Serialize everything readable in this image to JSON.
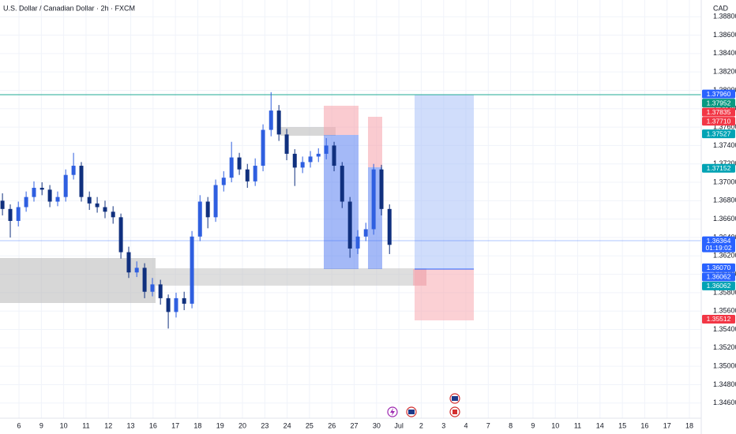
{
  "chart_data": {
    "type": "candlestick",
    "title": "U.S. Dollar / Canadian Dollar · 2h · FXCM",
    "currency": "CAD",
    "up_color": "#2f5fe0",
    "down_color": "#10307e",
    "grid": true,
    "xlim": [
      -0.85,
      30.53
    ],
    "ylim": [
      1.34435,
      1.38982
    ],
    "xticks": [
      {
        "value": 0,
        "label": "6"
      },
      {
        "value": 1,
        "label": "9"
      },
      {
        "value": 2,
        "label": "10"
      },
      {
        "value": 3,
        "label": "11"
      },
      {
        "value": 4,
        "label": "12"
      },
      {
        "value": 5,
        "label": "13"
      },
      {
        "value": 6,
        "label": "16"
      },
      {
        "value": 7,
        "label": "17"
      },
      {
        "value": 8,
        "label": "18"
      },
      {
        "value": 9,
        "label": "19"
      },
      {
        "value": 10,
        "label": "20"
      },
      {
        "value": 11,
        "label": "23"
      },
      {
        "value": 12,
        "label": "24"
      },
      {
        "value": 13,
        "label": "25"
      },
      {
        "value": 14,
        "label": "26"
      },
      {
        "value": 15,
        "label": "27"
      },
      {
        "value": 16,
        "label": "30"
      },
      {
        "value": 17,
        "label": "Jul"
      },
      {
        "value": 18,
        "label": "2"
      },
      {
        "value": 19,
        "label": "3"
      },
      {
        "value": 20,
        "label": "4"
      },
      {
        "value": 21,
        "label": "7"
      },
      {
        "value": 22,
        "label": "8"
      },
      {
        "value": 23,
        "label": "9"
      },
      {
        "value": 24,
        "label": "10"
      },
      {
        "value": 25,
        "label": "11"
      },
      {
        "value": 26,
        "label": "14"
      },
      {
        "value": 27,
        "label": "15"
      },
      {
        "value": 28,
        "label": "16"
      },
      {
        "value": 29,
        "label": "17"
      },
      {
        "value": 30,
        "label": "18"
      }
    ],
    "yticks": [
      {
        "value": 1.346,
        "label": "1.34600"
      },
      {
        "value": 1.348,
        "label": "1.34800"
      },
      {
        "value": 1.35,
        "label": "1.35000"
      },
      {
        "value": 1.352,
        "label": "1.35200"
      },
      {
        "value": 1.354,
        "label": "1.35400"
      },
      {
        "value": 1.356,
        "label": "1.35600"
      },
      {
        "value": 1.358,
        "label": "1.35800"
      },
      {
        "value": 1.36,
        "label": "1.36000"
      },
      {
        "value": 1.362,
        "label": "1.36200"
      },
      {
        "value": 1.364,
        "label": "1.36400"
      },
      {
        "value": 1.366,
        "label": "1.36600"
      },
      {
        "value": 1.368,
        "label": "1.36800"
      },
      {
        "value": 1.37,
        "label": "1.37000"
      },
      {
        "value": 1.372,
        "label": "1.37200"
      },
      {
        "value": 1.374,
        "label": "1.37400"
      },
      {
        "value": 1.376,
        "label": "1.37600"
      },
      {
        "value": 1.378,
        "label": "1.37800"
      },
      {
        "value": 1.38,
        "label": "1.38000"
      },
      {
        "value": 1.382,
        "label": "1.38200"
      },
      {
        "value": 1.384,
        "label": "1.38400"
      },
      {
        "value": 1.386,
        "label": "1.38600"
      },
      {
        "value": 1.388,
        "label": "1.38800"
      }
    ],
    "x": [
      -0.74,
      -0.39,
      -0.03,
      0.32,
      0.67,
      1.03,
      1.38,
      1.73,
      2.09,
      2.44,
      2.79,
      3.15,
      3.5,
      3.85,
      4.21,
      4.56,
      4.91,
      5.27,
      5.62,
      5.97,
      6.33,
      6.68,
      7.03,
      7.39,
      7.74,
      8.1,
      8.45,
      8.8,
      9.16,
      9.51,
      9.86,
      10.22,
      10.57,
      10.92,
      11.28,
      11.63,
      11.98,
      12.34,
      12.69,
      13.04,
      13.4,
      13.75,
      14.1,
      14.46,
      14.81,
      15.16,
      15.52,
      15.87,
      16.22,
      16.58
    ],
    "open": [
      1.368,
      1.3671,
      1.3658,
      1.3673,
      1.3684,
      1.3694,
      1.3692,
      1.3679,
      1.3684,
      1.3708,
      1.3718,
      1.3684,
      1.3677,
      1.3673,
      1.3668,
      1.3662,
      1.3624,
      1.3602,
      1.3607,
      1.3581,
      1.3589,
      1.3574,
      1.3559,
      1.3574,
      1.3568,
      1.3641,
      1.3679,
      1.3662,
      1.3697,
      1.3705,
      1.3727,
      1.3714,
      1.3701,
      1.3718,
      1.3757,
      1.3778,
      1.3752,
      1.3731,
      1.3716,
      1.3722,
      1.3728,
      1.3731,
      1.374,
      1.3718,
      1.3679,
      1.3628,
      1.3641,
      1.3649,
      1.3714,
      1.3671
    ],
    "high": [
      1.3688,
      1.3676,
      1.3679,
      1.369,
      1.3701,
      1.37,
      1.3697,
      1.369,
      1.3714,
      1.3732,
      1.3722,
      1.369,
      1.3684,
      1.368,
      1.3674,
      1.3666,
      1.363,
      1.3614,
      1.3612,
      1.3596,
      1.3594,
      1.3578,
      1.358,
      1.3581,
      1.3647,
      1.3686,
      1.3684,
      1.3703,
      1.3712,
      1.3744,
      1.3732,
      1.372,
      1.3726,
      1.3763,
      1.3798,
      1.3784,
      1.3758,
      1.3736,
      1.3728,
      1.3734,
      1.3737,
      1.3748,
      1.3744,
      1.3722,
      1.3684,
      1.3648,
      1.3656,
      1.372,
      1.3719,
      1.3676
    ],
    "low": [
      1.3664,
      1.364,
      1.3652,
      1.3668,
      1.3679,
      1.3686,
      1.3673,
      1.3674,
      1.3679,
      1.3703,
      1.3679,
      1.367,
      1.3667,
      1.3661,
      1.3655,
      1.3617,
      1.3596,
      1.3597,
      1.3574,
      1.3576,
      1.3567,
      1.3541,
      1.3553,
      1.3561,
      1.3563,
      1.3636,
      1.365,
      1.3657,
      1.369,
      1.37,
      1.3708,
      1.3694,
      1.3696,
      1.3712,
      1.375,
      1.3745,
      1.3724,
      1.3696,
      1.371,
      1.3716,
      1.3722,
      1.3725,
      1.3712,
      1.3672,
      1.3618,
      1.3622,
      1.3636,
      1.3643,
      1.3664,
      1.3622
    ],
    "close": [
      1.3671,
      1.3658,
      1.3673,
      1.3684,
      1.3694,
      1.3692,
      1.3679,
      1.3684,
      1.3708,
      1.3718,
      1.3684,
      1.3677,
      1.3673,
      1.3668,
      1.3662,
      1.3624,
      1.3602,
      1.3607,
      1.3581,
      1.3589,
      1.3574,
      1.3559,
      1.3574,
      1.3568,
      1.3641,
      1.3679,
      1.3662,
      1.3697,
      1.3705,
      1.3727,
      1.3714,
      1.3701,
      1.3718,
      1.3757,
      1.3778,
      1.3752,
      1.3731,
      1.3716,
      1.3722,
      1.3728,
      1.3731,
      1.374,
      1.3718,
      1.3679,
      1.3628,
      1.3641,
      1.3649,
      1.3714,
      1.3671,
      1.3632
    ],
    "price_tags": [
      {
        "label": "1.37960",
        "value": 1.3796,
        "color": "#2962ff"
      },
      {
        "label": "1.37952",
        "value": 1.37952,
        "color": "#089981"
      },
      {
        "label": "1.37835",
        "value": 1.37835,
        "color": "#f23645"
      },
      {
        "label": "1.37710",
        "value": 1.3771,
        "color": "#f23645"
      },
      {
        "label": "1.37527",
        "value": 1.37527,
        "color": "#00a3b4"
      },
      {
        "label": "1.37152",
        "value": 1.37152,
        "color": "#00a3b4"
      },
      {
        "label": "1.36364",
        "value": 1.36364,
        "color": "#2962ff"
      },
      {
        "label": "1.36070",
        "value": 1.3607,
        "color": "#2962ff"
      },
      {
        "label": "1.36062",
        "value": 1.36062,
        "color": "#2962ff"
      },
      {
        "label": "1.36062",
        "value": 1.36062,
        "color": "#00a3b4"
      },
      {
        "label": "1.35512",
        "value": 1.35512,
        "color": "#f23645"
      }
    ],
    "countdown": "01:19:02"
  }
}
